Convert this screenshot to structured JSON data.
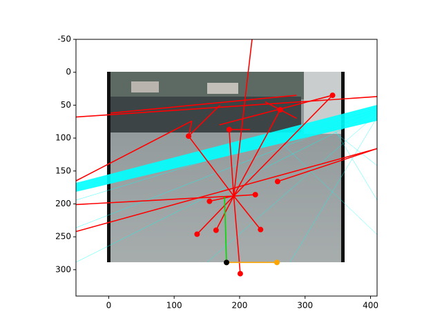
{
  "chart_data": {
    "type": "line",
    "xlim": [
      -50,
      410
    ],
    "ylim": [
      340,
      -50
    ],
    "xticks": [
      0,
      100,
      200,
      300,
      400
    ],
    "yticks": [
      -50,
      0,
      50,
      100,
      150,
      200,
      250,
      300
    ],
    "series": [
      {
        "color": "#ff0000",
        "linestyle": "solid",
        "marker": false,
        "x": [
          191,
          219,
          null,
          191,
          201,
          null,
          191,
          135,
          null,
          191,
          164,
          null,
          191,
          232,
          null,
          191,
          154,
          null,
          191,
          224,
          null,
          191,
          122,
          127,
          null,
          122,
          170,
          null,
          191,
          342,
          null,
          191,
          262,
          null,
          191,
          184,
          216,
          null,
          -50,
          410,
          null,
          -50,
          127,
          null,
          -50,
          191,
          null,
          -50,
          410,
          null,
          258,
          410,
          null,
          3,
          287,
          null,
          169,
          342,
          null,
          239,
          287
        ],
        "y": [
          188,
          -50,
          null,
          188,
          306,
          null,
          188,
          246,
          null,
          188,
          240,
          null,
          188,
          239,
          null,
          188,
          196,
          null,
          188,
          186,
          null,
          188,
          97,
          74,
          null,
          97,
          50,
          null,
          188,
          35,
          null,
          188,
          57,
          null,
          188,
          87,
          87,
          null,
          68,
          37,
          null,
          165,
          74,
          null,
          201,
          188,
          null,
          242,
          116,
          null,
          166,
          116,
          null,
          62,
          35,
          null,
          80,
          35,
          null,
          45,
          70
        ]
      },
      {
        "color": "#ff0000",
        "linestyle": "none",
        "marker": true,
        "x": [
          201,
          135,
          164,
          232,
          154,
          224,
          258,
          262,
          122,
          342,
          184
        ],
        "y": [
          306,
          246,
          240,
          239,
          196,
          186,
          166,
          57,
          97,
          35,
          87
        ]
      },
      {
        "color": "#00dd00",
        "linestyle": "solid",
        "marker": false,
        "x": [
          177,
          180
        ],
        "y": [
          189,
          289
        ]
      },
      {
        "color": "#ffa500",
        "linestyle": "solid",
        "marker": true,
        "x": [
          180,
          257
        ],
        "y": [
          289,
          289
        ]
      },
      {
        "color": "#000000",
        "linestyle": "none",
        "marker": true,
        "x": [
          180
        ],
        "y": [
          289
        ]
      }
    ]
  }
}
